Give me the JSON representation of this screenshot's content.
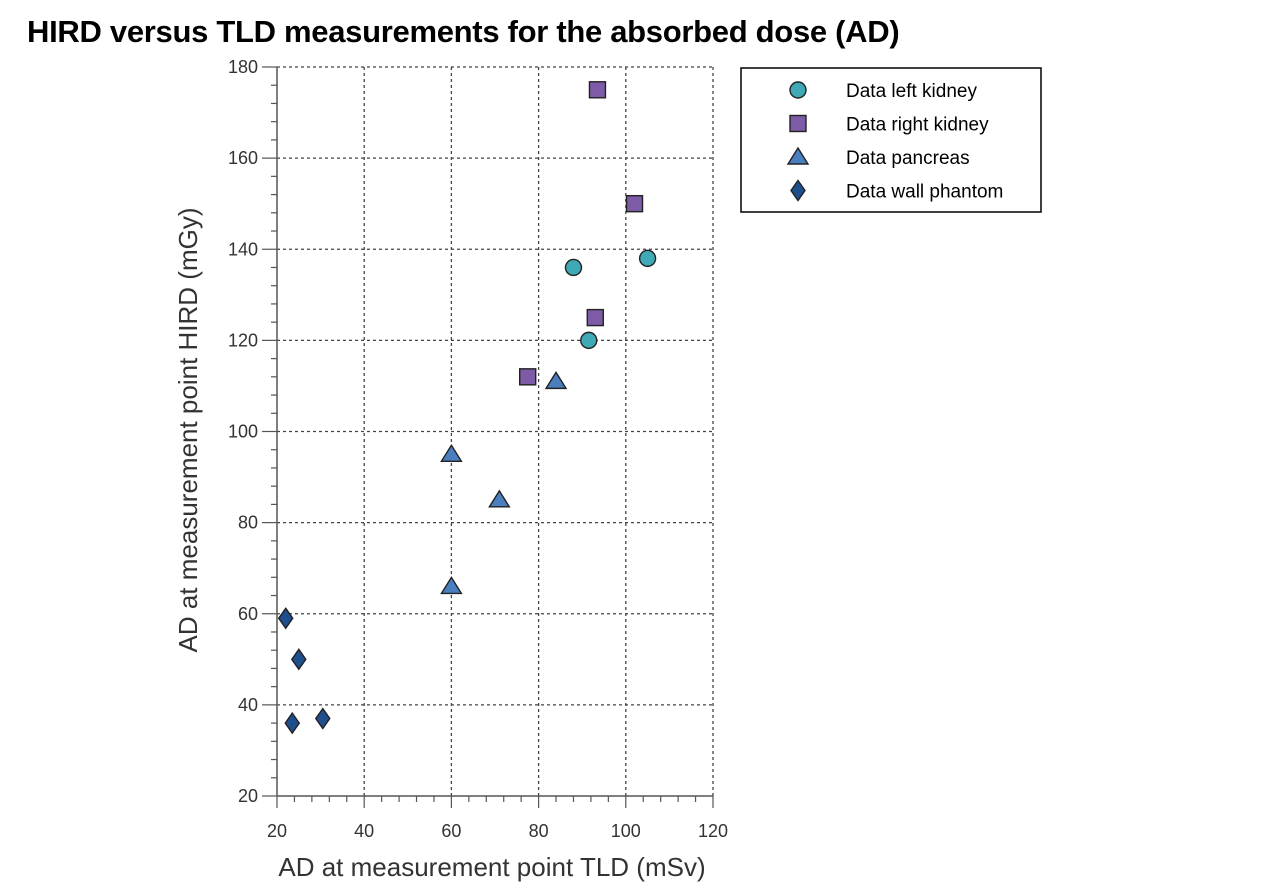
{
  "chart_data": {
    "type": "scatter",
    "title": "HIRD versus TLD measurements for the absorbed dose (AD)",
    "xlabel": "AD at measurement point TLD (mSv)",
    "ylabel": "AD at measurement point HIRD (mGy)",
    "xlim": [
      20,
      120
    ],
    "ylim": [
      20,
      180
    ],
    "xticks": [
      20,
      40,
      60,
      80,
      100,
      120
    ],
    "yticks": [
      20,
      40,
      60,
      80,
      100,
      120,
      140,
      160,
      180
    ],
    "grid": true,
    "legend_position": "top-right",
    "series": [
      {
        "name": "Data left kidney",
        "marker": "circle",
        "color": "#3fa9b5",
        "points": [
          [
            88,
            136
          ],
          [
            91.5,
            120
          ],
          [
            105,
            138
          ]
        ]
      },
      {
        "name": "Data right kidney",
        "marker": "square",
        "color": "#7d5ba6",
        "points": [
          [
            77.5,
            112
          ],
          [
            93,
            125
          ],
          [
            93.5,
            175
          ],
          [
            102,
            150
          ]
        ]
      },
      {
        "name": "Data pancreas",
        "marker": "triangle",
        "color": "#4a7fbf",
        "points": [
          [
            60,
            66
          ],
          [
            60,
            95
          ],
          [
            71,
            85
          ],
          [
            84,
            111
          ]
        ]
      },
      {
        "name": "Data wall phantom",
        "marker": "diamond",
        "color": "#1f4e8c",
        "points": [
          [
            22,
            59
          ],
          [
            23.5,
            36
          ],
          [
            25,
            50
          ],
          [
            30.5,
            37
          ]
        ]
      }
    ]
  }
}
